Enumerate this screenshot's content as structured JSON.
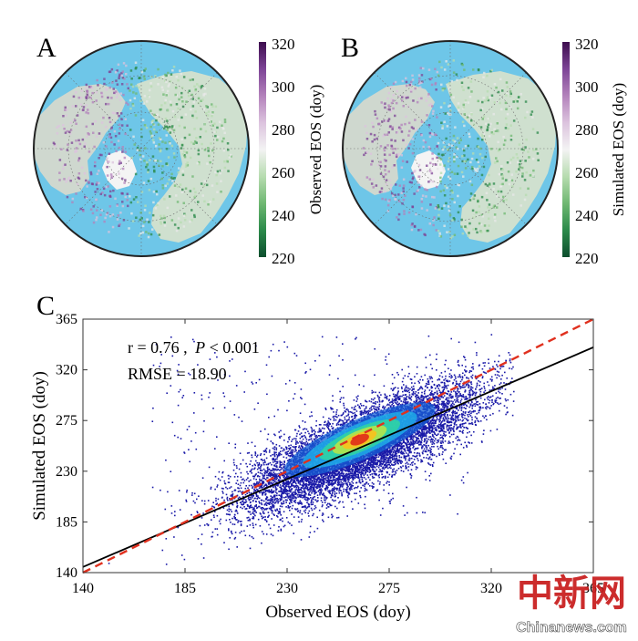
{
  "colors": {
    "ocean": "#6ec6e8",
    "land_white": "#f4f4f4",
    "cbar": [
      "#0d4e2e",
      "#2b8a4a",
      "#6fb872",
      "#b7dcb0",
      "#f3f3f3",
      "#dcc3de",
      "#b382bb",
      "#7d4496",
      "#3d0d4e"
    ],
    "fit_line": "#000000",
    "one_to_one": "#e0301e",
    "points": "#1a1aa8",
    "watermark_red": "#c81b1b"
  },
  "panels": [
    {
      "letter": "A",
      "colorbar": {
        "label": "Observed EOS (doy)",
        "ticks": [
          "320",
          "300",
          "280",
          "260",
          "240",
          "220"
        ],
        "min": 220,
        "max": 320
      }
    },
    {
      "letter": "B",
      "colorbar": {
        "label": "Simulated EOS (doy)",
        "ticks": [
          "320",
          "300",
          "280",
          "260",
          "240",
          "220"
        ],
        "min": 220,
        "max": 320
      }
    }
  ],
  "chart_data": {
    "type": "scatter",
    "panel_letter": "C",
    "xlabel": "Observed EOS (doy)",
    "ylabel": "Simulated EOS (doy)",
    "xlim": [
      140,
      365
    ],
    "ylim": [
      140,
      365
    ],
    "xticks": [
      "140",
      "185",
      "230",
      "275",
      "320",
      "365"
    ],
    "yticks": [
      "140",
      "185",
      "230",
      "275",
      "320",
      "365"
    ],
    "annotations": {
      "r_text": "r = 0.76 ,",
      "p_italic": "P",
      "p_rest": " < 0.001",
      "rmse": "RMSE = 18.90"
    },
    "fit_line": {
      "x": [
        140,
        365
      ],
      "y": [
        145,
        340
      ]
    },
    "one_to_one": {
      "x": [
        140,
        365
      ],
      "y": [
        140,
        365
      ]
    },
    "density_peak": {
      "x": 262,
      "y": 258
    },
    "point_count": 9000
  },
  "watermark": {
    "cn": "中新网",
    "url": "Chinanews.com"
  }
}
